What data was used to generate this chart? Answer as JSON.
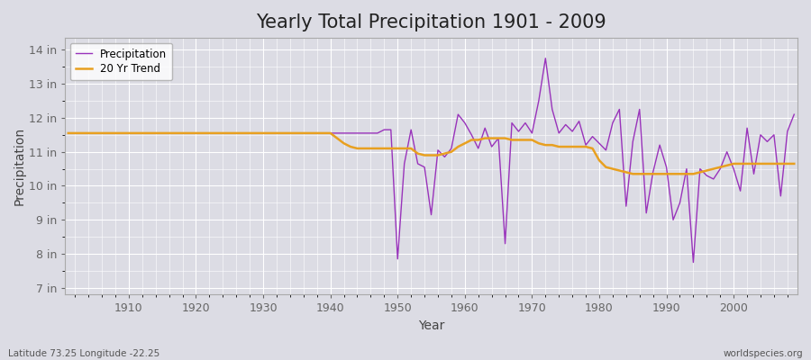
{
  "title": "Yearly Total Precipitation 1901 - 2009",
  "xlabel": "Year",
  "ylabel": "Precipitation",
  "bg_color": "#dcdce4",
  "plot_bg_color": "#dcdce4",
  "precip_color": "#9933bb",
  "trend_color": "#e8a020",
  "ylim": [
    6.8,
    14.35
  ],
  "yticks": [
    7,
    8,
    9,
    10,
    11,
    12,
    13,
    14
  ],
  "ytick_labels": [
    "7 in",
    "8 in",
    "9 in",
    "10 in",
    "11 in",
    "12 in",
    "13 in",
    "14 in"
  ],
  "xticks": [
    1910,
    1920,
    1930,
    1940,
    1950,
    1960,
    1970,
    1980,
    1990,
    2000
  ],
  "title_fontsize": 15,
  "years": [
    1901,
    1902,
    1903,
    1904,
    1905,
    1906,
    1907,
    1908,
    1909,
    1910,
    1911,
    1912,
    1913,
    1914,
    1915,
    1916,
    1917,
    1918,
    1919,
    1920,
    1921,
    1922,
    1923,
    1924,
    1925,
    1926,
    1927,
    1928,
    1929,
    1930,
    1931,
    1932,
    1933,
    1934,
    1935,
    1936,
    1937,
    1938,
    1939,
    1940,
    1941,
    1942,
    1943,
    1944,
    1945,
    1946,
    1947,
    1948,
    1949,
    1950,
    1951,
    1952,
    1953,
    1954,
    1955,
    1956,
    1957,
    1958,
    1959,
    1960,
    1961,
    1962,
    1963,
    1964,
    1965,
    1966,
    1967,
    1968,
    1969,
    1970,
    1971,
    1972,
    1973,
    1974,
    1975,
    1976,
    1977,
    1978,
    1979,
    1980,
    1981,
    1982,
    1983,
    1984,
    1985,
    1986,
    1987,
    1988,
    1989,
    1990,
    1991,
    1992,
    1993,
    1994,
    1995,
    1996,
    1997,
    1998,
    1999,
    2000,
    2001,
    2002,
    2003,
    2004,
    2005,
    2006,
    2007,
    2008,
    2009
  ],
  "precip": [
    11.55,
    11.55,
    11.55,
    11.55,
    11.55,
    11.55,
    11.55,
    11.55,
    11.55,
    11.55,
    11.55,
    11.55,
    11.55,
    11.55,
    11.55,
    11.55,
    11.55,
    11.55,
    11.55,
    11.55,
    11.55,
    11.55,
    11.55,
    11.55,
    11.55,
    11.55,
    11.55,
    11.55,
    11.55,
    11.55,
    11.55,
    11.55,
    11.55,
    11.55,
    11.55,
    11.55,
    11.55,
    11.55,
    11.55,
    11.55,
    11.55,
    11.55,
    11.55,
    11.55,
    11.55,
    11.55,
    11.55,
    11.65,
    11.65,
    7.85,
    10.65,
    11.65,
    10.65,
    10.55,
    9.15,
    11.05,
    10.85,
    11.1,
    12.1,
    11.85,
    11.5,
    11.1,
    11.7,
    11.15,
    11.4,
    8.3,
    11.85,
    11.6,
    11.85,
    11.55,
    12.5,
    13.75,
    12.25,
    11.55,
    11.8,
    11.6,
    11.9,
    11.2,
    11.45,
    11.25,
    11.05,
    11.85,
    12.25,
    9.4,
    11.3,
    12.25,
    9.2,
    10.4,
    11.2,
    10.55,
    9.0,
    9.5,
    10.5,
    7.75,
    10.5,
    10.3,
    10.2,
    10.5,
    11.0,
    10.5,
    9.85,
    11.7,
    10.35,
    11.5,
    11.3,
    11.5,
    9.7,
    11.6,
    12.1
  ],
  "trend": [
    11.55,
    11.55,
    11.55,
    11.55,
    11.55,
    11.55,
    11.55,
    11.55,
    11.55,
    11.55,
    11.55,
    11.55,
    11.55,
    11.55,
    11.55,
    11.55,
    11.55,
    11.55,
    11.55,
    11.55,
    11.55,
    11.55,
    11.55,
    11.55,
    11.55,
    11.55,
    11.55,
    11.55,
    11.55,
    11.55,
    11.55,
    11.55,
    11.55,
    11.55,
    11.55,
    11.55,
    11.55,
    11.55,
    11.55,
    11.55,
    11.4,
    11.25,
    11.15,
    11.1,
    11.1,
    11.1,
    11.1,
    11.1,
    11.1,
    11.1,
    11.1,
    11.1,
    10.95,
    10.9,
    10.9,
    10.9,
    10.95,
    11.0,
    11.15,
    11.25,
    11.35,
    11.35,
    11.4,
    11.4,
    11.4,
    11.4,
    11.35,
    11.35,
    11.35,
    11.35,
    11.25,
    11.2,
    11.2,
    11.15,
    11.15,
    11.15,
    11.15,
    11.15,
    11.1,
    10.75,
    10.55,
    10.5,
    10.45,
    10.4,
    10.35,
    10.35,
    10.35,
    10.35,
    10.35,
    10.35,
    10.35,
    10.35,
    10.35,
    10.35,
    10.4,
    10.45,
    10.5,
    10.55,
    10.6,
    10.65,
    10.65,
    10.65,
    10.65,
    10.65,
    10.65,
    10.65,
    10.65,
    10.65,
    10.65
  ]
}
